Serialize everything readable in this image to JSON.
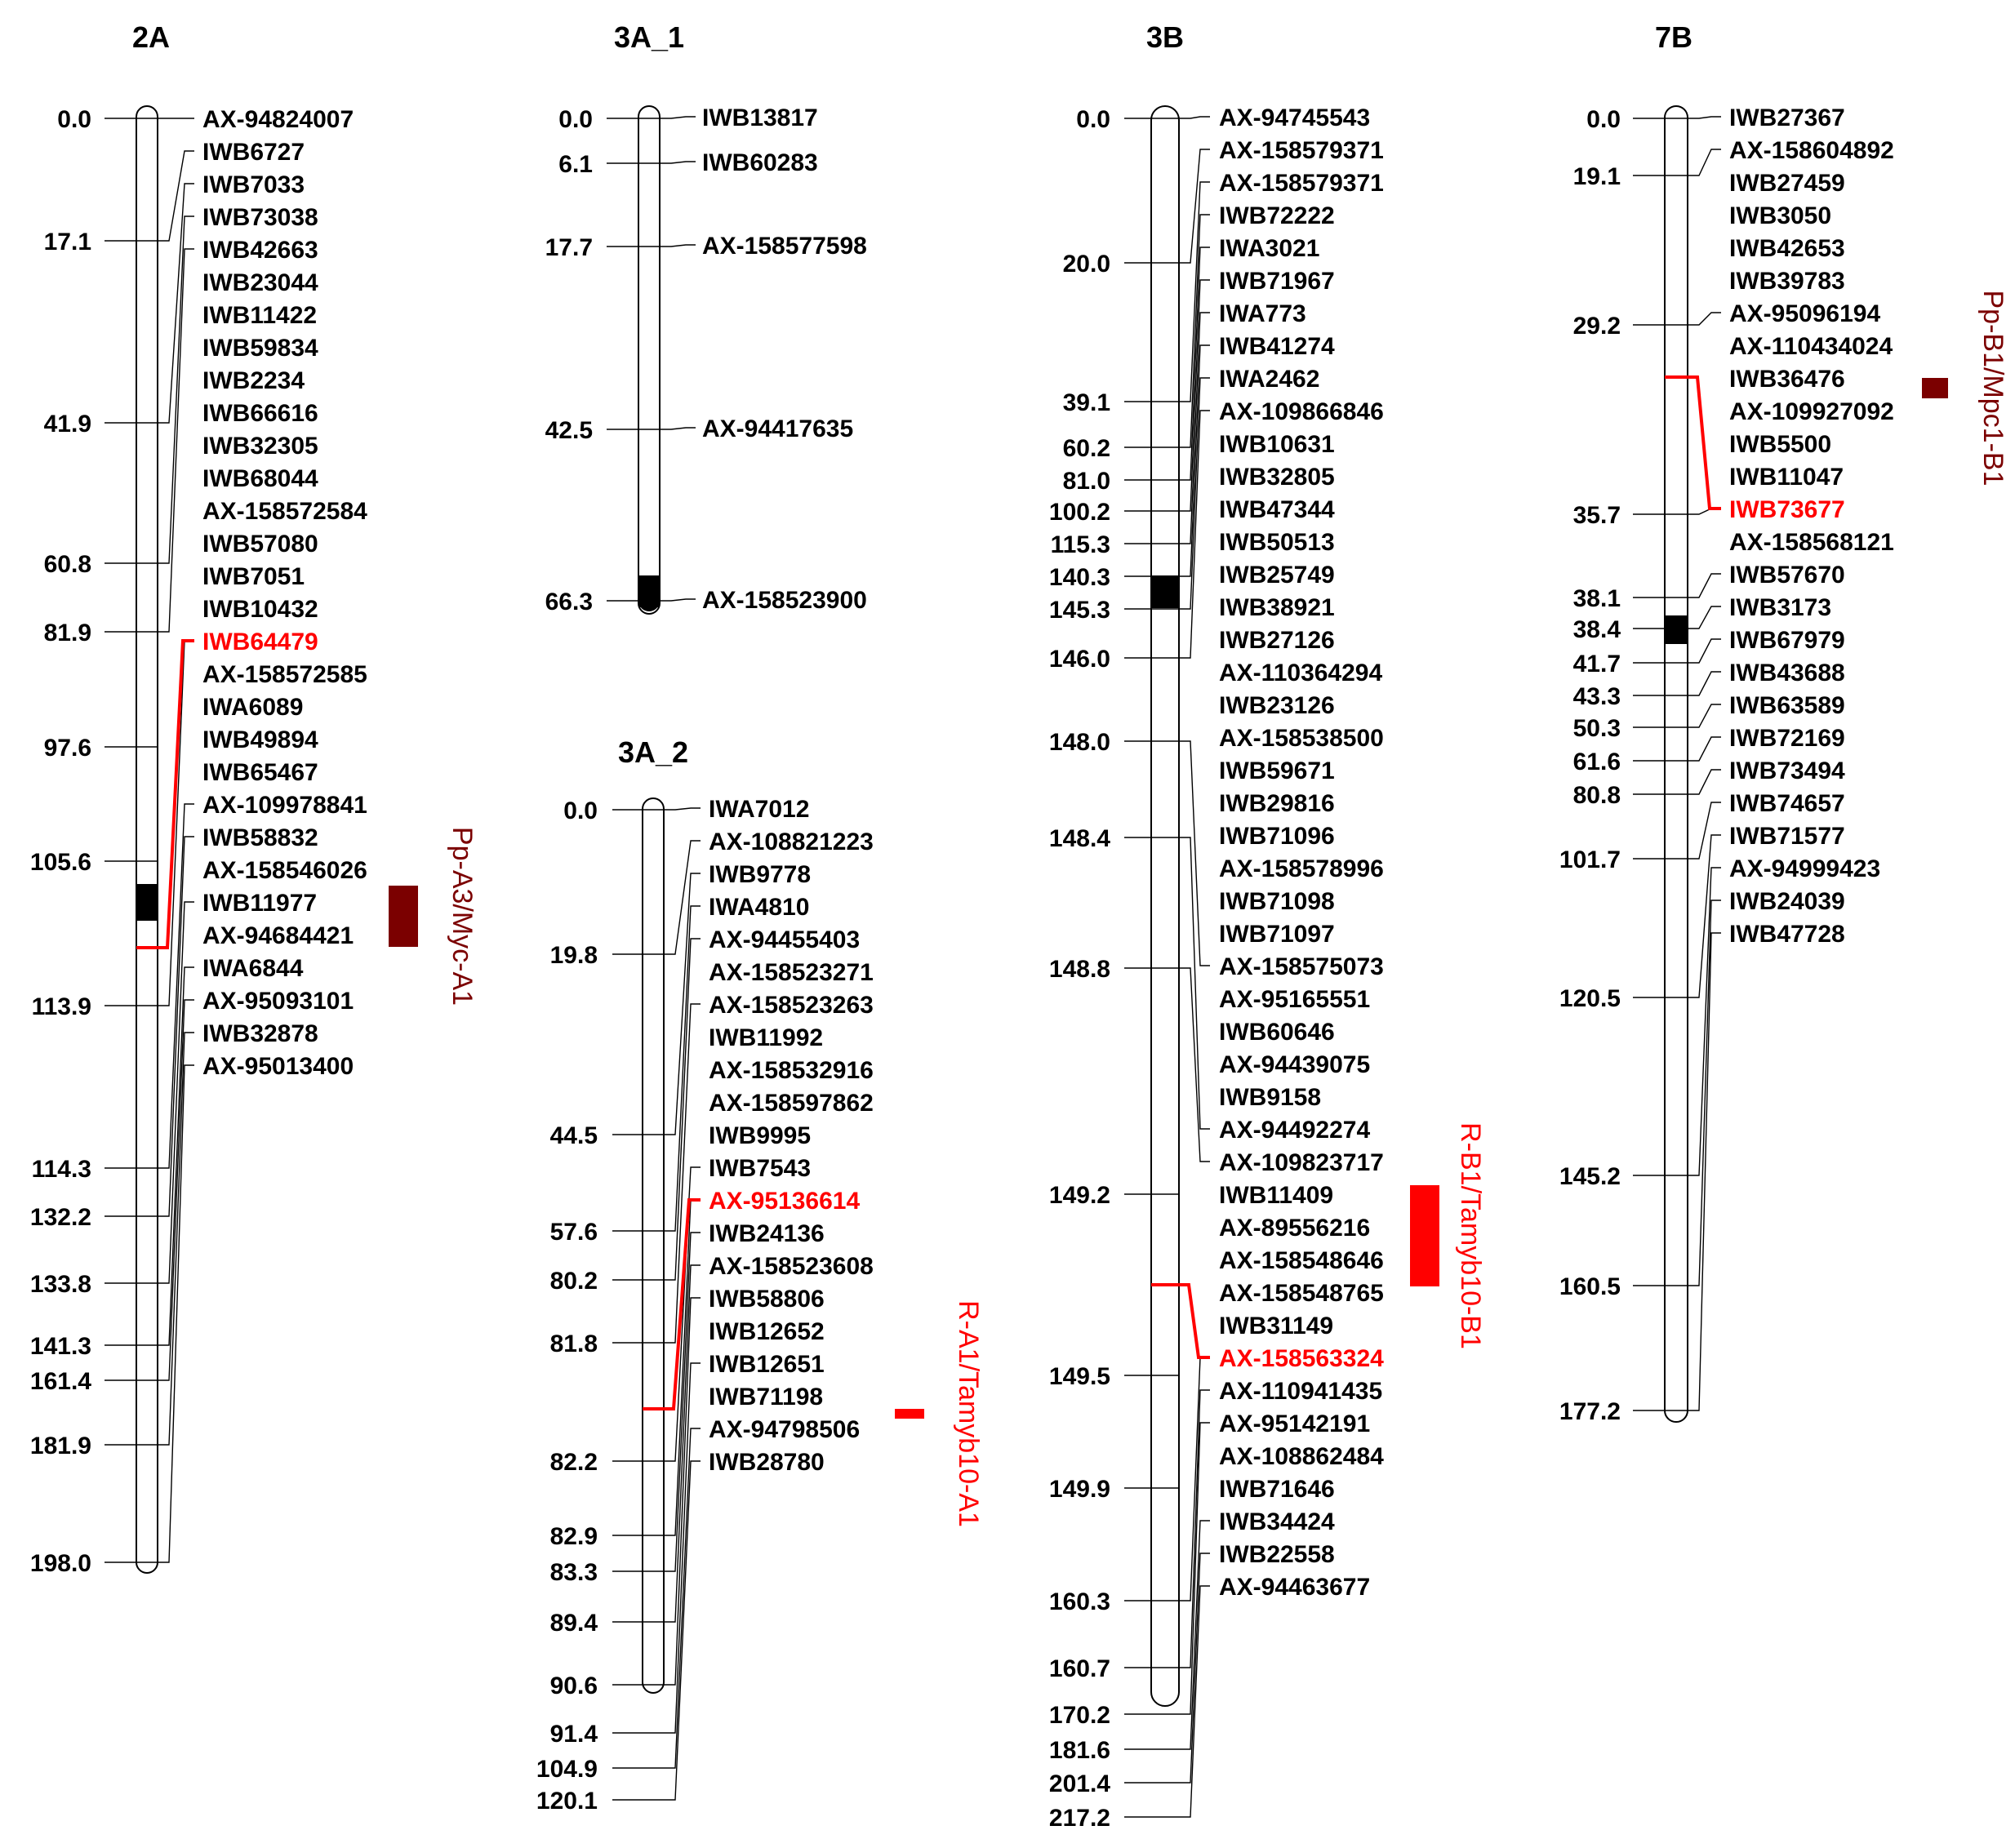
{
  "colors": {
    "highlight_red": "#ff0000",
    "qtl_dark": "#7b0000",
    "line": "#000000",
    "text": "#000000"
  },
  "chromosomes": [
    {
      "id": "2A",
      "title": "2A",
      "positions": [
        "0.0",
        "17.1",
        "41.9",
        "60.8",
        "81.9",
        "97.6",
        "105.6",
        "113.9",
        "114.3",
        "132.2",
        "133.8",
        "141.3",
        "161.4",
        "181.9",
        "198.0"
      ],
      "markers": [
        "AX-94824007",
        "IWB6727",
        "IWB7033",
        "IWB73038",
        "IWB42663",
        "IWB23044",
        "IWB11422",
        "IWB59834",
        "IWB2234",
        "IWB66616",
        "IWB32305",
        "IWB68044",
        "AX-158572584",
        "IWB57080",
        "IWB7051",
        "IWB10432",
        "IWB64479",
        "AX-158572585",
        "IWA6089",
        "IWB49894",
        "IWB65467",
        "AX-109978841",
        "IWB58832",
        "AX-158546026",
        "IWB11977",
        "AX-94684421",
        "IWA6844",
        "AX-95093101",
        "IWB32878",
        "AX-95013400"
      ],
      "highlight_marker": "IWB64479",
      "qtl": {
        "label": "Pp-A3/Myc-A1",
        "color": "#7b0000"
      }
    },
    {
      "id": "3A_1",
      "title": "3A_1",
      "positions": [
        "0.0",
        "6.1",
        "17.7",
        "42.5",
        "66.3"
      ],
      "markers": [
        "IWB13817",
        "IWB60283",
        "AX-158577598",
        "AX-94417635",
        "AX-158523900"
      ],
      "highlight_marker": null,
      "qtl": null
    },
    {
      "id": "3A_2",
      "title": "3A_2",
      "positions": [
        "0.0",
        "19.8",
        "44.5",
        "57.6",
        "80.2",
        "81.8",
        "82.2",
        "82.9",
        "83.3",
        "89.4",
        "90.6",
        "91.4",
        "104.9",
        "120.1"
      ],
      "markers": [
        "IWA7012",
        "AX-108821223",
        "IWB9778",
        "IWA4810",
        "AX-94455403",
        "AX-158523271",
        "AX-158523263",
        "IWB11992",
        "AX-158532916",
        "AX-158597862",
        "IWB9995",
        "IWB7543",
        "AX-95136614",
        "IWB24136",
        "AX-158523608",
        "IWB58806",
        "IWB12652",
        "IWB12651",
        "IWB71198",
        "AX-94798506",
        "IWB28780"
      ],
      "highlight_marker": "AX-95136614",
      "qtl": {
        "label": "R-A1/Tamyb10-A1",
        "color": "#ff0000"
      }
    },
    {
      "id": "3B",
      "title": "3B",
      "positions": [
        "0.0",
        "20.0",
        "39.1",
        "60.2",
        "81.0",
        "100.2",
        "115.3",
        "140.3",
        "145.3",
        "146.0",
        "148.0",
        "148.4",
        "148.8",
        "149.2",
        "149.5",
        "149.9",
        "160.3",
        "160.7",
        "170.2",
        "181.6",
        "201.4",
        "217.2"
      ],
      "markers": [
        "AX-94745543",
        "AX-158579371",
        "AX-158579371",
        "IWB72222",
        "IWA3021",
        "IWB71967",
        "IWA773",
        "IWB41274",
        "IWA2462",
        "AX-109866846",
        "IWB10631",
        "IWB32805",
        "IWB47344",
        "IWB50513",
        "IWB25749",
        "IWB38921",
        "IWB27126",
        "AX-110364294",
        "IWB23126",
        "AX-158538500",
        "IWB59671",
        "IWB29816",
        "IWB71096",
        "AX-158578996",
        "IWB71098",
        "IWB71097",
        "AX-158575073",
        "AX-95165551",
        "IWB60646",
        "AX-94439075",
        "IWB9158",
        "AX-94492274",
        "AX-109823717",
        "IWB11409",
        "AX-89556216",
        "AX-158548646",
        "AX-158548765",
        "IWB31149",
        "AX-158563324",
        "AX-110941435",
        "AX-95142191",
        "AX-108862484",
        "IWB71646",
        "IWB34424",
        "IWB22558",
        "AX-94463677"
      ],
      "highlight_marker": "AX-158563324",
      "qtl": {
        "label": "R-B1/Tamyb10-B1",
        "color": "#ff0000"
      }
    },
    {
      "id": "7B",
      "title": "7B",
      "positions": [
        "0.0",
        "19.1",
        "29.2",
        "35.7",
        "38.1",
        "38.4",
        "41.7",
        "43.3",
        "50.3",
        "61.6",
        "80.8",
        "101.7",
        "120.5",
        "145.2",
        "160.5",
        "177.2"
      ],
      "markers": [
        "IWB27367",
        "AX-158604892",
        "IWB27459",
        "IWB3050",
        "IWB42653",
        "IWB39783",
        "AX-95096194",
        "AX-110434024",
        "IWB36476",
        "AX-109927092",
        "IWB5500",
        "IWB11047",
        "IWB73677",
        "AX-158568121",
        "IWB57670",
        "IWB3173",
        "IWB67979",
        "IWB43688",
        "IWB63589",
        "IWB72169",
        "IWB73494",
        "IWB74657",
        "IWB71577",
        "AX-94999423",
        "IWB24039",
        "IWB47728"
      ],
      "highlight_marker": "IWB73677",
      "qtl": {
        "label": "Pp-B1/Mpc1-B1",
        "color": "#7b0000"
      }
    }
  ]
}
